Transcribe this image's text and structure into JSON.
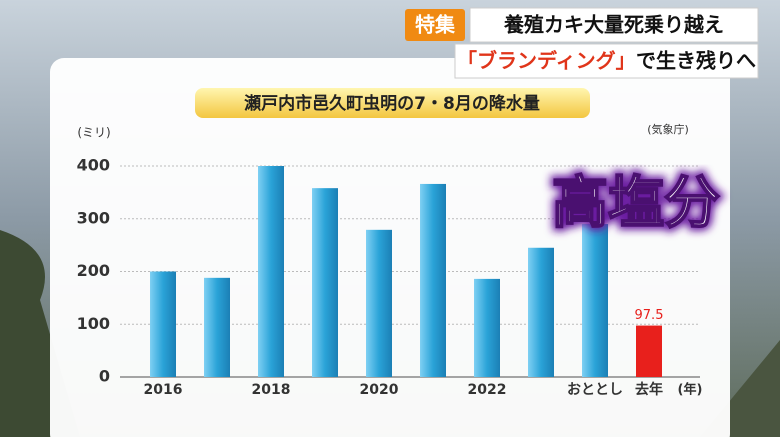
{
  "banner": {
    "tag": "特集",
    "line1": "養殖カキ大量死乗り越え",
    "line2_highlight": "「ブランディング」",
    "line2_rest": "で生き残りへ"
  },
  "caption": "高塩分",
  "chart_data": {
    "type": "bar",
    "title": "瀬戸内市邑久町虫明の7・8月の降水量",
    "y_unit": "(ミリ)",
    "x_unit": "(年)",
    "source": "(気象庁)",
    "categories": [
      "2016",
      null,
      "2018",
      null,
      "2020",
      null,
      "2022",
      null,
      "おととし",
      "去年"
    ],
    "values": [
      200,
      188,
      400,
      358,
      279,
      366,
      186,
      245,
      290,
      97.5
    ],
    "value_labels": [
      null,
      null,
      null,
      null,
      null,
      null,
      null,
      null,
      null,
      "97.5"
    ],
    "bar_colors": [
      "#2aa3d8",
      "#2aa3d8",
      "#2aa3d8",
      "#2aa3d8",
      "#2aa3d8",
      "#2aa3d8",
      "#2aa3d8",
      "#2aa3d8",
      "#2aa3d8",
      "#e8201c"
    ],
    "ylim": [
      0,
      400
    ],
    "yticks": [
      0,
      100,
      200,
      300,
      400
    ],
    "grid": true
  }
}
